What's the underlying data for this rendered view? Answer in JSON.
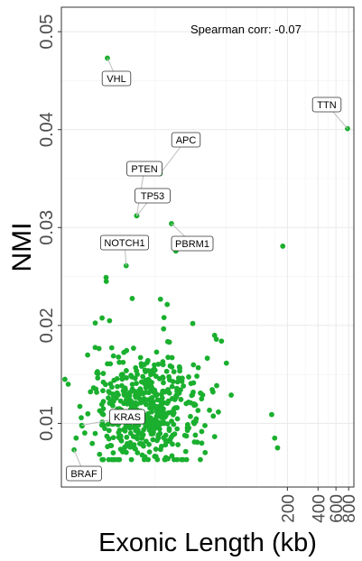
{
  "chart_data": {
    "type": "scatter",
    "xlabel": "Exonic Length (kb)",
    "ylabel": "NMI",
    "x_scale": "log",
    "xlim": [
      1.2,
      900
    ],
    "ylim": [
      0.0035,
      0.0525
    ],
    "xticks": [
      200,
      400,
      600,
      800
    ],
    "xminor": [
      10,
      50,
      100,
      150,
      300,
      500,
      700
    ],
    "yticks": [
      0.01,
      0.02,
      0.03,
      0.04,
      0.05
    ],
    "ytick_labels": [
      "0.01",
      "0.02",
      "0.03",
      "0.04",
      "0.05"
    ],
    "grid": true,
    "point_color": "#1aaf2e",
    "annotation": "Spearman corr: -0.07",
    "labeled_points": [
      {
        "gene": "VHL",
        "x": 3.4,
        "y": 0.0473
      },
      {
        "gene": "TTN",
        "x": 780,
        "y": 0.0401
      },
      {
        "gene": "APC",
        "x": 11.2,
        "y": 0.0355
      },
      {
        "gene": "PTEN",
        "x": 6.6,
        "y": 0.0312
      },
      {
        "gene": "TP53",
        "x": 6.6,
        "y": 0.0312
      },
      {
        "gene": "NOTCH1",
        "x": 5.2,
        "y": 0.0261
      },
      {
        "gene": "PBRM1",
        "x": 14.5,
        "y": 0.0304
      },
      {
        "gene": "KRAS",
        "x": 1.9,
        "y": 0.0098
      },
      {
        "gene": "BRAF",
        "x": 1.6,
        "y": 0.0073
      }
    ],
    "extra_points": [
      {
        "x": 180,
        "y": 0.0281
      },
      {
        "x": 16,
        "y": 0.0276
      },
      {
        "x": 3.3,
        "y": 0.0249
      },
      {
        "x": 40,
        "y": 0.0186
      },
      {
        "x": 45,
        "y": 0.0184
      },
      {
        "x": 140,
        "y": 0.0109
      },
      {
        "x": 150,
        "y": 0.0085
      },
      {
        "x": 160,
        "y": 0.0075
      },
      {
        "x": 1.3,
        "y": 0.0145
      },
      {
        "x": 1.4,
        "y": 0.014
      }
    ],
    "cloud": {
      "n": 520,
      "x_center": 8,
      "y_center": 0.011,
      "seed": 7
    }
  }
}
